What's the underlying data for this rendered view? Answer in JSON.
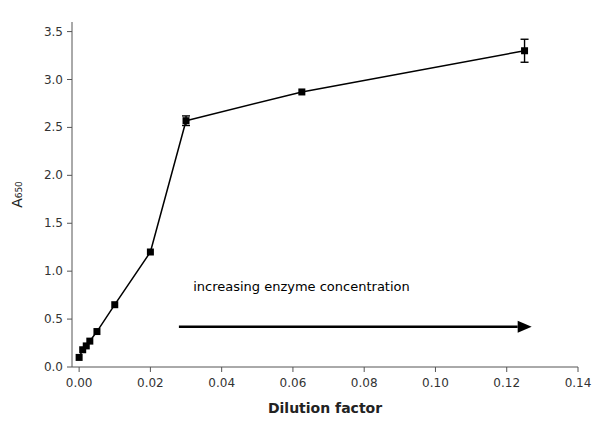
{
  "chart_data": {
    "type": "line",
    "x": [
      0.0,
      0.001,
      0.002,
      0.003,
      0.005,
      0.01,
      0.02,
      0.03,
      0.0625,
      0.125
    ],
    "values": [
      0.1,
      0.18,
      0.22,
      0.27,
      0.37,
      0.65,
      1.2,
      2.57,
      2.87,
      3.3
    ],
    "yerr": [
      0.0,
      0.0,
      0.0,
      0.0,
      0.0,
      0.0,
      0.0,
      0.05,
      0.0,
      0.12
    ],
    "color": "#000000",
    "marker": "square",
    "xlim": [
      -0.002,
      0.14
    ],
    "ylim": [
      0.0,
      3.6
    ],
    "xticks": [
      {
        "value": 0.0,
        "label": "0.00"
      },
      {
        "value": 0.02,
        "label": "0.02"
      },
      {
        "value": 0.04,
        "label": "0.04"
      },
      {
        "value": 0.06,
        "label": "0.06"
      },
      {
        "value": 0.08,
        "label": "0.08"
      },
      {
        "value": 0.1,
        "label": "0.10"
      },
      {
        "value": 0.12,
        "label": "0.12"
      },
      {
        "value": 0.14,
        "label": "0.14"
      }
    ],
    "yticks": [
      {
        "value": 0.0,
        "label": "0.0"
      },
      0.5,
      {
        "value": 1.0,
        "label": "1.0"
      },
      1.5,
      {
        "value": 2.0,
        "label": "2.0"
      },
      2.5,
      {
        "value": 3.0,
        "label": "3.0"
      },
      3.5
    ],
    "x_label": "Dilution factor",
    "y_label": "A₆₅₀",
    "grid": false,
    "annotations": [
      {
        "text": "increasing enzyme concentration",
        "x": 0.032,
        "y": 0.76,
        "arrow": {
          "x_start": 0.028,
          "x_end": 0.127,
          "y": 0.42
        }
      }
    ]
  }
}
